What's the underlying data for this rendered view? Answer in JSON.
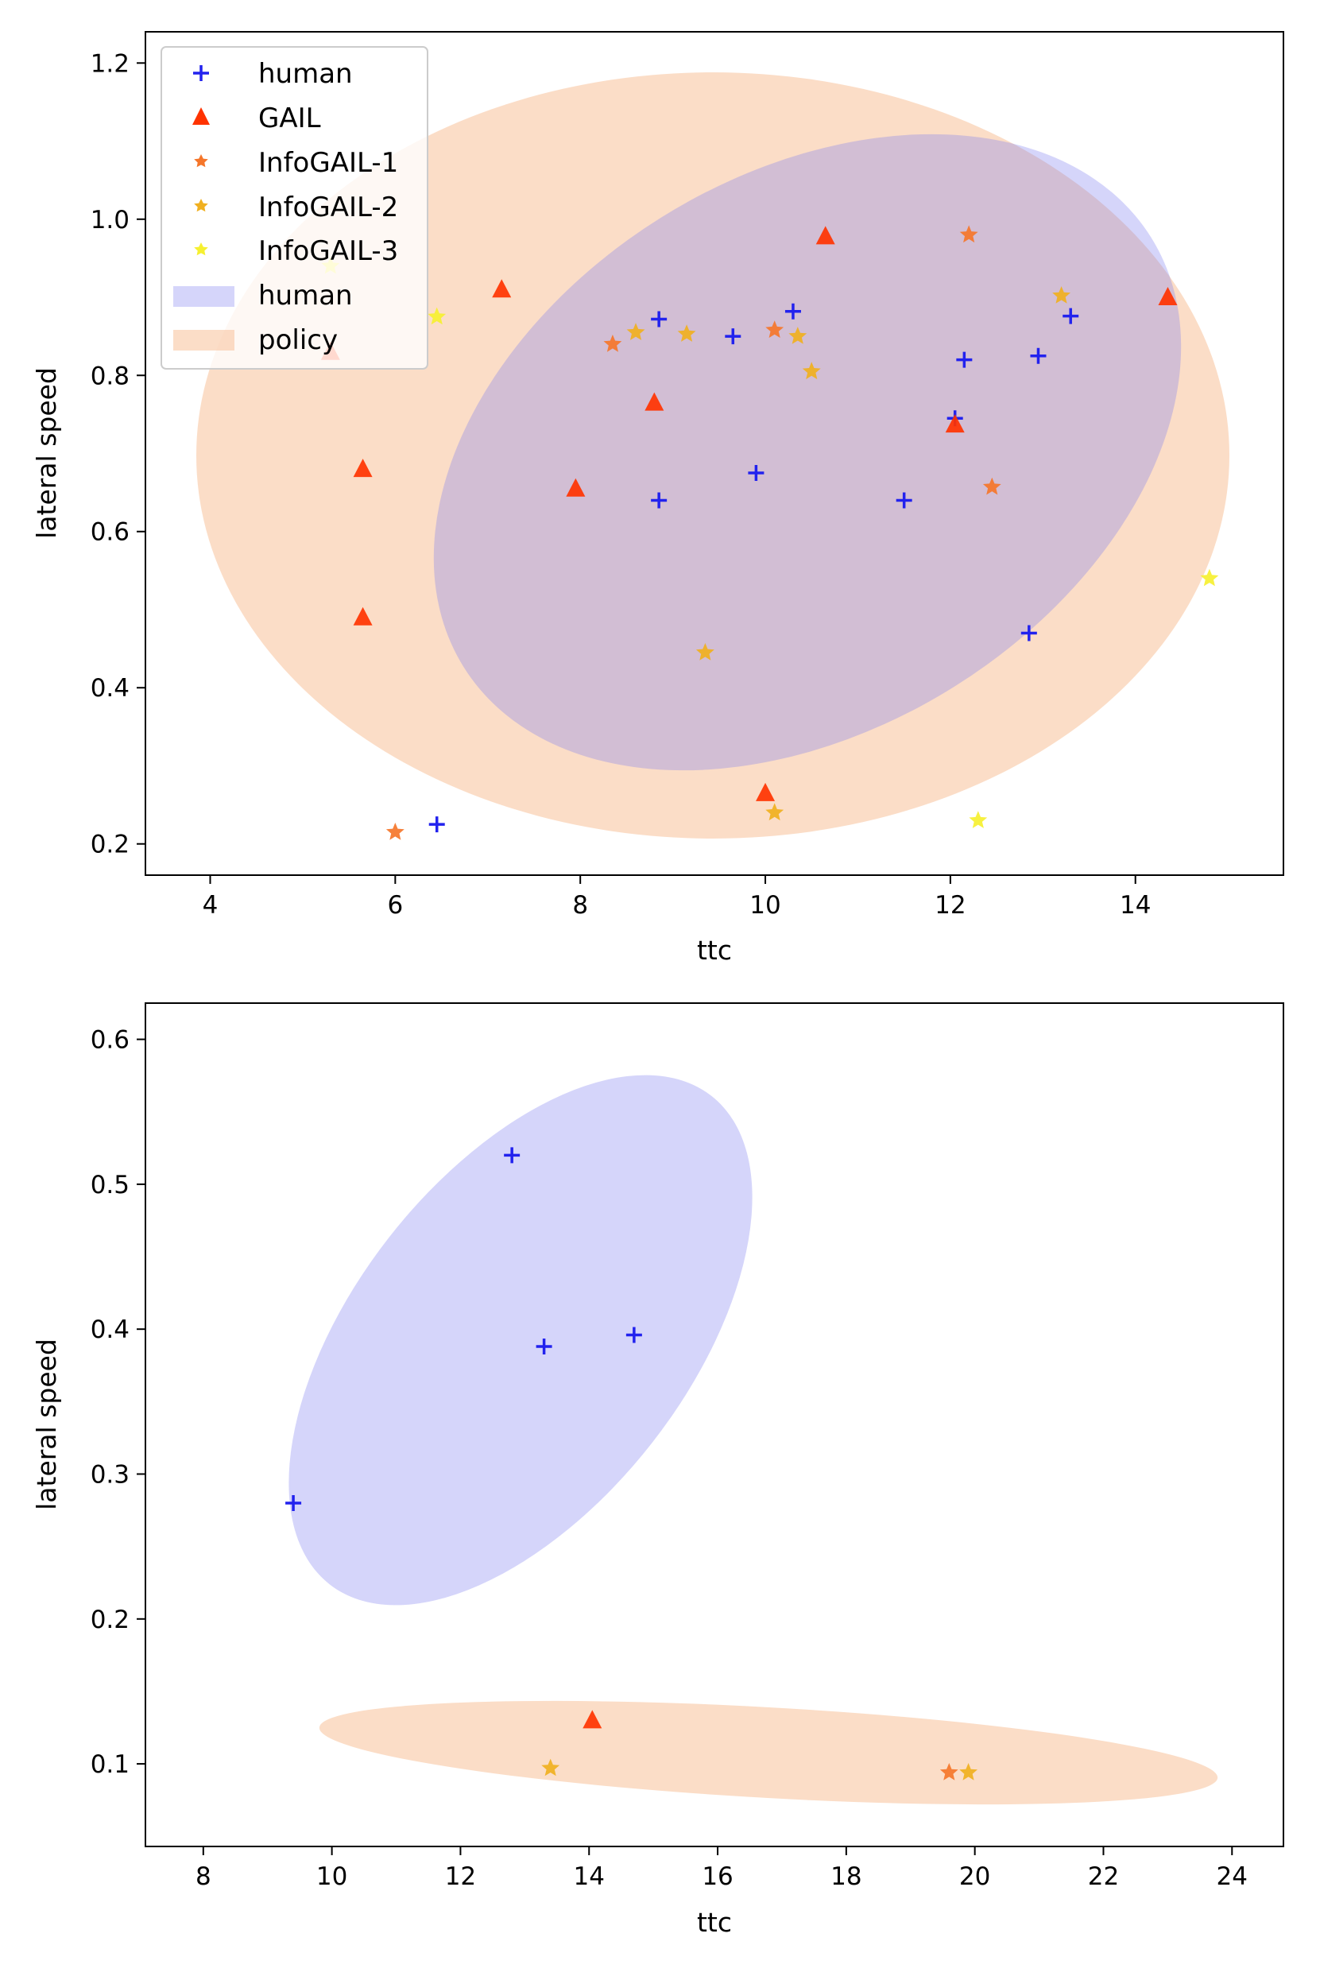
{
  "chart_data": [
    {
      "type": "scatter",
      "xlabel": "ttc",
      "ylabel": "lateral speed",
      "xlim": [
        3.3,
        15.6
      ],
      "ylim": [
        0.16,
        1.24
      ],
      "xticks": [
        4,
        6,
        8,
        10,
        12,
        14
      ],
      "yticks": [
        0.2,
        0.4,
        0.6,
        0.8,
        1.0,
        1.2
      ],
      "tick_labels_x": [
        "4",
        "6",
        "8",
        "10",
        "12",
        "14"
      ],
      "tick_labels_y": [
        "0.2",
        "0.4",
        "0.6",
        "0.8",
        "1.0",
        "1.2"
      ],
      "legend": {
        "placement": "top-left",
        "entries": [
          "human",
          "GAIL",
          "InfoGAIL-1",
          "InfoGAIL-2",
          "InfoGAIL-3",
          "human",
          "policy"
        ]
      },
      "series": [
        {
          "name": "human",
          "marker": "plus",
          "color": "#2222ee",
          "points": [
            [
              6.45,
              0.225
            ],
            [
              8.85,
              0.64
            ],
            [
              8.85,
              0.872
            ],
            [
              9.65,
              0.85
            ],
            [
              9.9,
              0.675
            ],
            [
              10.3,
              0.882
            ],
            [
              11.5,
              0.64
            ],
            [
              12.05,
              0.745
            ],
            [
              12.15,
              0.82
            ],
            [
              12.85,
              0.47
            ],
            [
              12.95,
              0.825
            ],
            [
              13.3,
              0.876
            ]
          ]
        },
        {
          "name": "GAIL",
          "marker": "triangle",
          "color": "#ff3300",
          "points": [
            [
              5.3,
              0.83
            ],
            [
              5.65,
              0.68
            ],
            [
              5.65,
              0.49
            ],
            [
              7.15,
              0.91
            ],
            [
              7.95,
              0.655
            ],
            [
              8.8,
              0.765
            ],
            [
              10.0,
              0.265
            ],
            [
              10.65,
              0.978
            ],
            [
              12.05,
              0.737
            ],
            [
              14.35,
              0.9
            ]
          ]
        },
        {
          "name": "InfoGAIL-1",
          "marker": "star",
          "color": "#f5762a",
          "points": [
            [
              6.0,
              0.215
            ],
            [
              8.35,
              0.84
            ],
            [
              10.1,
              0.858
            ],
            [
              12.2,
              0.98
            ],
            [
              12.45,
              0.657
            ]
          ]
        },
        {
          "name": "InfoGAIL-2",
          "marker": "star",
          "color": "#f0b020",
          "points": [
            [
              8.6,
              0.855
            ],
            [
              9.15,
              0.853
            ],
            [
              9.35,
              0.445
            ],
            [
              10.1,
              0.24
            ],
            [
              10.35,
              0.85
            ],
            [
              10.5,
              0.805
            ],
            [
              13.2,
              0.902
            ]
          ]
        },
        {
          "name": "InfoGAIL-3",
          "marker": "star",
          "color": "#f6f030",
          "points": [
            [
              5.3,
              0.94
            ],
            [
              6.45,
              0.875
            ],
            [
              12.3,
              0.23
            ],
            [
              14.8,
              0.54
            ]
          ]
        }
      ],
      "ellipses": [
        {
          "name": "human",
          "color": "#7b7bf0",
          "opacity": 0.32,
          "center": [
            11.55,
            0.7
          ],
          "rx_data": 3.1,
          "ry_data": 0.45,
          "corners": [
            [
              7.7,
              0.5
            ],
            [
              15.1,
              0.9
            ]
          ]
        },
        {
          "name": "policy",
          "color": "#f9c8a4",
          "opacity": 0.62,
          "center": [
            9.8,
            0.7
          ],
          "corners": [
            [
              4.0,
              0.2
            ],
            [
              15.3,
              1.2
            ]
          ]
        }
      ]
    },
    {
      "type": "scatter",
      "xlabel": "ttc",
      "ylabel": "lateral speed",
      "xlim": [
        7.1,
        24.8
      ],
      "ylim": [
        0.043,
        0.625
      ],
      "xticks": [
        8,
        10,
        12,
        14,
        16,
        18,
        20,
        22,
        24
      ],
      "yticks": [
        0.1,
        0.2,
        0.3,
        0.4,
        0.5,
        0.6
      ],
      "tick_labels_x": [
        "8",
        "10",
        "12",
        "14",
        "16",
        "18",
        "20",
        "22",
        "24"
      ],
      "tick_labels_y": [
        "0.1",
        "0.2",
        "0.3",
        "0.4",
        "0.5",
        "0.6"
      ],
      "series": [
        {
          "name": "human",
          "marker": "plus",
          "color": "#2222ee",
          "points": [
            [
              9.4,
              0.28
            ],
            [
              12.8,
              0.52
            ],
            [
              13.3,
              0.388
            ],
            [
              14.7,
              0.396
            ]
          ]
        },
        {
          "name": "GAIL",
          "marker": "triangle",
          "color": "#ff3300",
          "points": [
            [
              14.05,
              0.13
            ]
          ]
        },
        {
          "name": "InfoGAIL-1",
          "marker": "star",
          "color": "#f5762a",
          "points": [
            [
              19.6,
              0.094
            ]
          ]
        },
        {
          "name": "InfoGAIL-2",
          "marker": "star",
          "color": "#f0b020",
          "points": [
            [
              13.4,
              0.097
            ],
            [
              19.9,
              0.094
            ]
          ]
        },
        {
          "name": "InfoGAIL-3",
          "marker": "star",
          "color": "#f6f030",
          "points": []
        }
      ],
      "ellipses": [
        {
          "name": "human",
          "color": "#7b7bf0",
          "opacity": 0.32,
          "center": [
            12.5,
            0.395
          ]
        },
        {
          "name": "policy",
          "color": "#f9c8a4",
          "opacity": 0.62,
          "center": [
            15.1,
            0.104
          ]
        }
      ]
    }
  ]
}
